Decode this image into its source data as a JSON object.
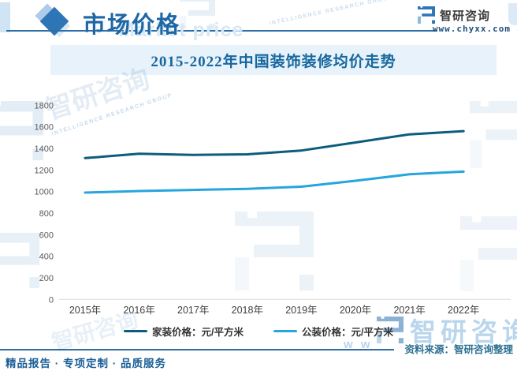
{
  "header": {
    "section_title": "市场价格",
    "section_watermark": "Market price",
    "brand_name": "智研咨询",
    "brand_url": "www.chyxx.com"
  },
  "chart_data": {
    "type": "line",
    "title": "2015-2022年中国装饰装修均价走势",
    "categories": [
      "2015年",
      "2016年",
      "2017年",
      "2018年",
      "2019年",
      "2020年",
      "2021年",
      "2022年"
    ],
    "series": [
      {
        "name": "家装价格：元/平方米",
        "color": "#0d5c7e",
        "values": [
          1310,
          1350,
          1340,
          1345,
          1380,
          1455,
          1530,
          1560
        ]
      },
      {
        "name": "公装价格：元/平方米",
        "color": "#27a5dd",
        "values": [
          990,
          1005,
          1015,
          1025,
          1045,
          1100,
          1160,
          1185
        ]
      }
    ],
    "xlabel": "",
    "ylabel": "",
    "ylim": [
      0,
      1800
    ],
    "ytick_step": 200,
    "grid": false,
    "legend_position": "bottom",
    "axis_color": "#d9d9d9",
    "tick_color": "#595959"
  },
  "footer": {
    "source_label": "资料来源：智研咨询整理",
    "tagline": "精品报告 · 专项定制 · 品质服务"
  },
  "watermarks": {
    "brand_cn": "智研咨询",
    "brand_sub": "INTELLIGENCE RESEARCH GROUP",
    "www_fragment": "w w"
  }
}
